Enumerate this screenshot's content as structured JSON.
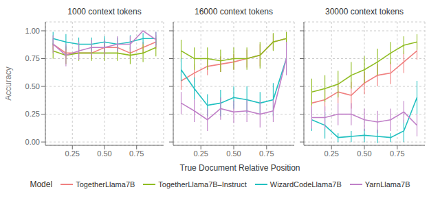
{
  "chart_data": [
    {
      "type": "line",
      "title": "1000 context tokens",
      "y_label": "Accuracy",
      "x": [
        0.1,
        0.2,
        0.3,
        0.4,
        0.5,
        0.6,
        0.7,
        0.8,
        0.9
      ],
      "series": [
        {
          "name": "TogetherLlama7B",
          "color": "#F08080",
          "values": [
            0.88,
            0.8,
            0.8,
            0.8,
            0.85,
            0.85,
            0.8,
            0.85,
            0.9
          ],
          "errors": [
            0.05,
            0.04,
            0.04,
            0.05,
            0.04,
            0.04,
            0.05,
            0.05,
            0.06
          ]
        },
        {
          "name": "TogetherLlama7B–Instruct",
          "color": "#8FBC20",
          "values": [
            0.82,
            0.78,
            0.8,
            0.8,
            0.8,
            0.8,
            0.78,
            0.8,
            0.85
          ],
          "errors": [
            0.07,
            0.08,
            0.07,
            0.07,
            0.07,
            0.07,
            0.08,
            0.08,
            0.08
          ]
        },
        {
          "name": "WizardCodeLlama7B",
          "color": "#20C0C0",
          "values": [
            0.93,
            0.9,
            0.88,
            0.88,
            0.9,
            0.88,
            0.9,
            0.93,
            0.93
          ],
          "errors": [
            0.06,
            0.07,
            0.06,
            0.06,
            0.05,
            0.06,
            0.06,
            0.05,
            0.06
          ]
        },
        {
          "name": "YarnLlama7B",
          "color": "#C080C8",
          "values": [
            0.88,
            0.78,
            0.82,
            0.85,
            0.85,
            0.88,
            0.88,
            1.0,
            0.92
          ],
          "errors": [
            0.08,
            0.1,
            0.08,
            0.07,
            0.07,
            0.07,
            0.07,
            0.0,
            0.07
          ]
        }
      ],
      "xlim": [
        0.04,
        0.96
      ],
      "xticks": [
        0.25,
        {
          "value": 0.5,
          "label": "0.50"
        },
        0.75
      ],
      "ylim": [
        -0.03,
        1.08
      ],
      "yticks": [
        {
          "value": 0,
          "label": "0.00"
        },
        0.25,
        {
          "value": 0.5,
          "label": "0.50"
        },
        0.75,
        {
          "value": 1,
          "label": "1.00"
        }
      ],
      "grid": true
    },
    {
      "type": "line",
      "title": "16000 context tokens",
      "x_label": "True Document Relative Position",
      "legend": "bottom",
      "legend_title": "Model",
      "tick_labels": "x",
      "x": [
        0.1,
        0.2,
        0.3,
        0.4,
        0.5,
        0.6,
        0.7,
        0.8,
        0.9
      ],
      "series": [
        {
          "name": "TogetherLlama7B",
          "color": "#F08080",
          "values": [
            0.55,
            0.62,
            0.68,
            0.7,
            0.72,
            0.75,
            0.78,
            0.9,
            0.93
          ],
          "errors": [
            0.08,
            0.08,
            0.08,
            0.07,
            0.07,
            0.08,
            0.1,
            0.07,
            0.06
          ]
        },
        {
          "name": "TogetherLlama7B–Instruct",
          "color": "#8FBC20",
          "values": [
            0.82,
            0.75,
            0.75,
            0.73,
            0.75,
            0.75,
            0.78,
            0.9,
            0.93
          ],
          "errors": [
            0.1,
            0.1,
            0.1,
            0.1,
            0.1,
            0.1,
            0.12,
            0.08,
            0.06
          ]
        },
        {
          "name": "WizardCodeLlama7B",
          "color": "#20C0C0",
          "values": [
            0.65,
            0.48,
            0.33,
            0.35,
            0.4,
            0.38,
            0.35,
            0.38,
            0.75
          ],
          "errors": [
            0.1,
            0.1,
            0.1,
            0.12,
            0.1,
            0.12,
            0.1,
            0.15,
            0.12
          ]
        },
        {
          "name": "YarnLlama7B",
          "color": "#C080C8",
          "values": [
            0.35,
            0.28,
            0.2,
            0.3,
            0.27,
            0.28,
            0.25,
            0.28,
            0.75
          ],
          "errors": [
            0.1,
            0.1,
            0.1,
            0.1,
            0.1,
            0.1,
            0.12,
            0.1,
            0.15
          ]
        }
      ],
      "xlim": [
        0.04,
        0.96
      ],
      "xticks": [
        0.25,
        {
          "value": 0.5,
          "label": "0.50"
        },
        0.75
      ],
      "ylim": [
        -0.03,
        1.08
      ],
      "yticks": [
        {
          "value": 0,
          "label": "0.00"
        },
        0.25,
        {
          "value": 0.5,
          "label": "0.50"
        },
        0.75,
        {
          "value": 1,
          "label": "1.00"
        }
      ],
      "grid": true
    },
    {
      "type": "line",
      "title": "30000 context tokens",
      "tick_labels": "x",
      "x": [
        0.1,
        0.2,
        0.3,
        0.4,
        0.5,
        0.6,
        0.7,
        0.8,
        0.9
      ],
      "series": [
        {
          "name": "TogetherLlama7B",
          "color": "#F08080",
          "values": [
            0.35,
            0.38,
            0.45,
            0.42,
            0.53,
            0.6,
            0.62,
            0.72,
            0.82
          ],
          "errors": [
            0.1,
            0.1,
            0.1,
            0.12,
            0.1,
            0.1,
            0.1,
            0.1,
            0.08
          ]
        },
        {
          "name": "TogetherLlama7B–Instruct",
          "color": "#8FBC20",
          "values": [
            0.45,
            0.48,
            0.52,
            0.6,
            0.65,
            0.72,
            0.8,
            0.87,
            0.9
          ],
          "errors": [
            0.12,
            0.12,
            0.12,
            0.12,
            0.12,
            0.12,
            0.1,
            0.08,
            0.07
          ]
        },
        {
          "name": "WizardCodeLlama7B",
          "color": "#20C0C0",
          "values": [
            0.2,
            0.15,
            0.04,
            0.05,
            0.06,
            0.05,
            0.04,
            0.1,
            0.4
          ],
          "errors": [
            0.1,
            0.12,
            0.04,
            0.05,
            0.06,
            0.06,
            0.04,
            0.1,
            0.15
          ]
        },
        {
          "name": "YarnLlama7B",
          "color": "#C080C8",
          "values": [
            0.22,
            0.22,
            0.25,
            0.25,
            0.2,
            0.18,
            0.2,
            0.27,
            0.15
          ],
          "errors": [
            0.1,
            0.1,
            0.1,
            0.1,
            0.1,
            0.1,
            0.1,
            0.1,
            0.1
          ]
        }
      ],
      "xlim": [
        0.04,
        0.96
      ],
      "xticks": [
        0.25,
        {
          "value": 0.5,
          "label": "0.50"
        },
        0.75
      ],
      "ylim": [
        -0.03,
        1.08
      ],
      "yticks": [
        {
          "value": 0,
          "label": "0.00"
        },
        0.25,
        {
          "value": 0.5,
          "label": "0.50"
        },
        0.75,
        {
          "value": 1,
          "label": "1.00"
        }
      ],
      "grid": true
    }
  ]
}
